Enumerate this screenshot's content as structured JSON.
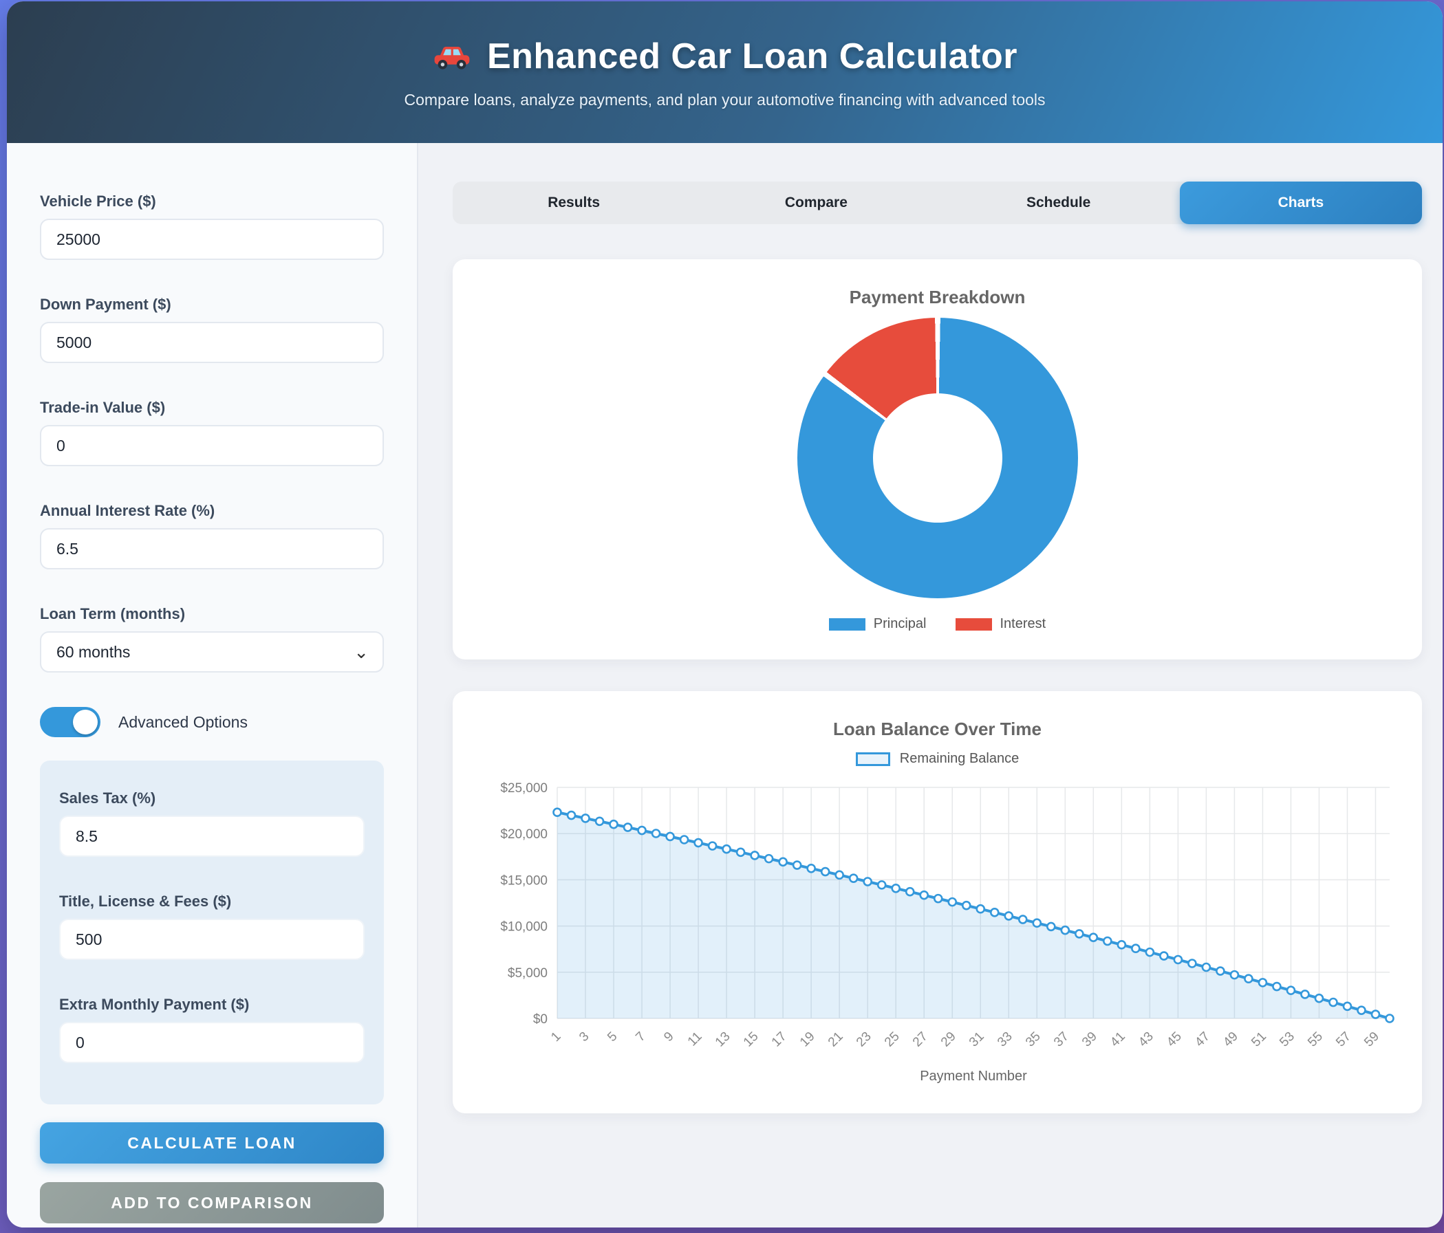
{
  "header": {
    "title": "Enhanced Car Loan Calculator",
    "subtitle": "Compare loans, analyze payments, and plan your automotive financing with advanced tools",
    "car_icon": "car-emoji"
  },
  "form": {
    "fields": [
      {
        "label": "Vehicle Price ($)",
        "value": "25000"
      },
      {
        "label": "Down Payment ($)",
        "value": "5000"
      },
      {
        "label": "Trade-in Value ($)",
        "value": "0"
      },
      {
        "label": "Annual Interest Rate (%)",
        "value": "6.5"
      }
    ],
    "loan_term": {
      "label": "Loan Term (months)",
      "selected": "60 months"
    },
    "advanced_toggle_label": "Advanced Options",
    "advanced_toggle_on": true,
    "advanced_fields": [
      {
        "label": "Sales Tax (%)",
        "value": "8.5"
      },
      {
        "label": "Title, License & Fees ($)",
        "value": "500"
      },
      {
        "label": "Extra Monthly Payment ($)",
        "value": "0"
      }
    ],
    "calculate_label": "CALCULATE LOAN",
    "compare_label": "ADD TO COMPARISON"
  },
  "tabs": [
    {
      "label": "Results",
      "active": false
    },
    {
      "label": "Compare",
      "active": false
    },
    {
      "label": "Schedule",
      "active": false
    },
    {
      "label": "Charts",
      "active": true
    }
  ],
  "colors": {
    "accent_blue": "#3498db",
    "header_gradient": [
      "#2c3e50",
      "#3498db"
    ],
    "page_gradient": [
      "#667eea",
      "#764ba2"
    ],
    "calculate_button": "#2e86c7",
    "compare_button": "#7f8c8d",
    "advanced_panel": "#e4eef7"
  },
  "chart_data": [
    {
      "type": "pie",
      "variant": "doughnut",
      "title": "Payment Breakdown",
      "labels": [
        "Principal",
        "Interest"
      ],
      "values": [
        22625,
        3935
      ],
      "colors": [
        "#3498db",
        "#e74c3c"
      ],
      "cutout_percent": 46,
      "legend_position": "bottom"
    },
    {
      "type": "area",
      "title": "Loan Balance Over Time",
      "series_name": "Remaining Balance",
      "xlabel": "Payment Number",
      "ylabel": "",
      "ylim": [
        0,
        25000
      ],
      "ytick_step": 5000,
      "ytick_labels": [
        "$0",
        "$5,000",
        "$10,000",
        "$15,000",
        "$20,000",
        "$25,000"
      ],
      "x_tick_labels": [
        1,
        3,
        5,
        7,
        9,
        11,
        13,
        15,
        17,
        19,
        21,
        23,
        25,
        27,
        29,
        31,
        33,
        35,
        37,
        39,
        41,
        43,
        45,
        47,
        49,
        51,
        53,
        55,
        57,
        59
      ],
      "x_start": 1,
      "grid": true,
      "line_color": "#3498db",
      "fill_color": "rgba(52,152,219,0.14)",
      "values": [
        22305,
        21983,
        21659,
        21334,
        21007,
        20678,
        20347,
        20015,
        19681,
        19345,
        19007,
        18667,
        18325,
        17982,
        17637,
        17290,
        16941,
        16590,
        16237,
        15882,
        15525,
        15167,
        14806,
        14444,
        14079,
        13713,
        13344,
        12974,
        12602,
        12227,
        11851,
        11472,
        11092,
        10709,
        10325,
        9938,
        9549,
        9158,
        8765,
        8370,
        7972,
        7573,
        7171,
        6768,
        6362,
        5953,
        5543,
        5130,
        4716,
        4299,
        3879,
        3458,
        3034,
        2607,
        2179,
        1748,
        1315,
        879,
        441,
        0
      ]
    }
  ]
}
